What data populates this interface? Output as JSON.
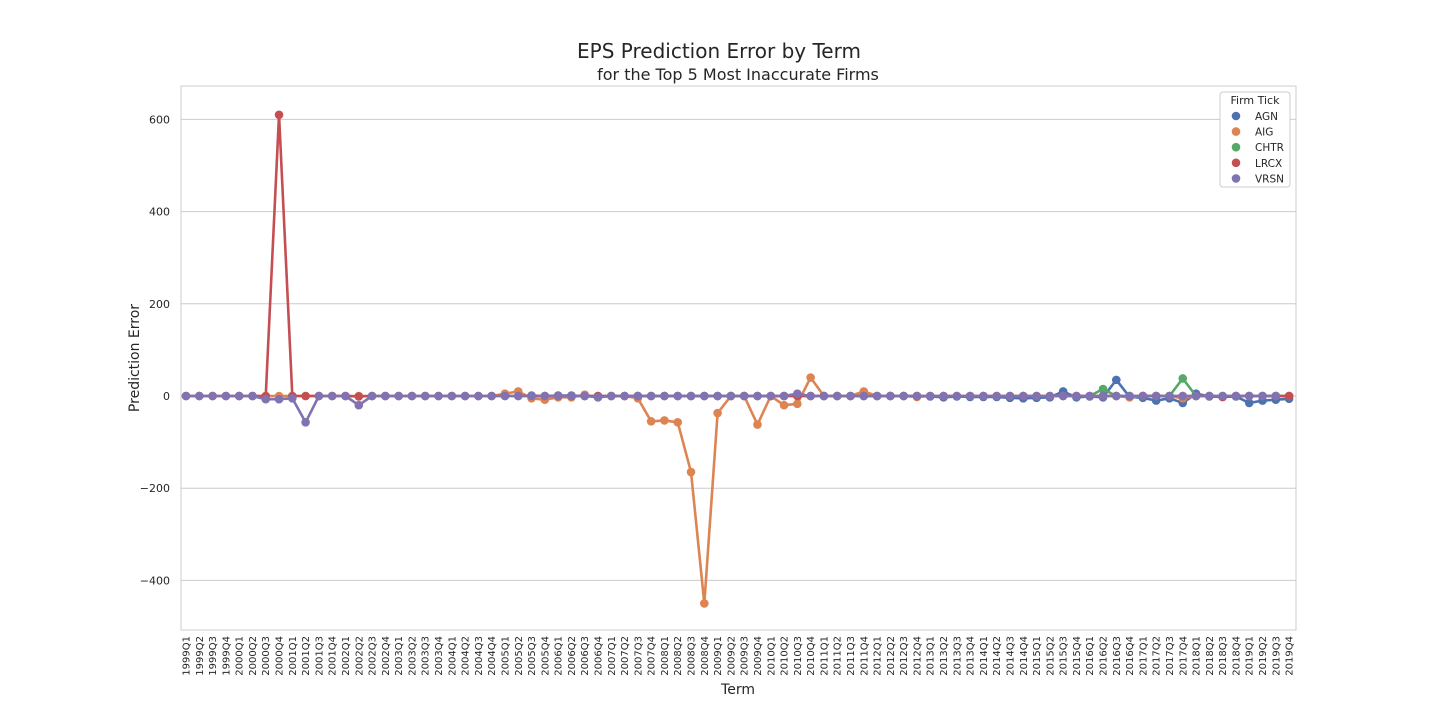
{
  "chart_data": {
    "type": "line",
    "title": "EPS Prediction Error by Term",
    "subtitle": "for the Top 5 Most Inaccurate Firms",
    "xlabel": "Term",
    "ylabel": "Prediction Error",
    "ylim": [
      -500,
      670
    ],
    "yticks": [
      600,
      400,
      200,
      0,
      -200,
      -400
    ],
    "ytick_labels": [
      "600",
      "400",
      "200",
      "0",
      "−200",
      "−400"
    ],
    "grid": "horizontal",
    "legend": {
      "title": "Firm Tick",
      "placement": "top-right"
    },
    "categories": [
      "1999Q1",
      "1999Q2",
      "1999Q3",
      "1999Q4",
      "2000Q1",
      "2000Q2",
      "2000Q3",
      "2000Q4",
      "2001Q1",
      "2001Q2",
      "2001Q3",
      "2001Q4",
      "2002Q1",
      "2002Q2",
      "2002Q3",
      "2002Q4",
      "2003Q1",
      "2003Q2",
      "2003Q3",
      "2003Q4",
      "2004Q1",
      "2004Q2",
      "2004Q3",
      "2004Q4",
      "2005Q1",
      "2005Q2",
      "2005Q3",
      "2005Q4",
      "2006Q1",
      "2006Q2",
      "2006Q3",
      "2006Q4",
      "2007Q1",
      "2007Q2",
      "2007Q3",
      "2007Q4",
      "2008Q1",
      "2008Q2",
      "2008Q3",
      "2008Q4",
      "2009Q1",
      "2009Q2",
      "2009Q3",
      "2009Q4",
      "2010Q1",
      "2010Q2",
      "2010Q3",
      "2010Q4",
      "2011Q1",
      "2011Q2",
      "2011Q3",
      "2011Q4",
      "2012Q1",
      "2012Q2",
      "2012Q3",
      "2012Q4",
      "2013Q1",
      "2013Q2",
      "2013Q3",
      "2013Q4",
      "2014Q1",
      "2014Q2",
      "2014Q3",
      "2014Q4",
      "2015Q1",
      "2015Q2",
      "2015Q3",
      "2015Q4",
      "2016Q1",
      "2016Q2",
      "2016Q3",
      "2016Q4",
      "2017Q1",
      "2017Q2",
      "2017Q3",
      "2017Q4",
      "2018Q1",
      "2018Q2",
      "2018Q3",
      "2018Q4",
      "2019Q1",
      "2019Q2",
      "2019Q3",
      "2019Q4"
    ],
    "series": [
      {
        "name": "AGN",
        "color": "#4c72b0",
        "values": [
          null,
          null,
          null,
          null,
          null,
          null,
          null,
          null,
          null,
          null,
          null,
          null,
          null,
          null,
          null,
          null,
          null,
          null,
          null,
          null,
          null,
          null,
          null,
          null,
          null,
          null,
          1,
          0,
          1,
          1,
          0,
          0,
          0,
          0,
          0,
          0,
          0,
          0,
          0,
          0,
          0,
          0,
          0,
          0,
          0,
          0,
          0,
          0,
          0,
          0,
          0,
          0,
          0,
          0,
          0,
          0,
          -1,
          -3,
          -1,
          -2,
          -2,
          -2,
          -4,
          -5,
          -4,
          -3,
          10,
          -3,
          -1,
          -3,
          35,
          -2,
          -4,
          -10,
          -5,
          -15,
          5,
          -1,
          -2,
          -1,
          -15,
          -10,
          -8,
          -6
        ]
      },
      {
        "name": "AIG",
        "color": "#dd8452",
        "values": [
          0,
          0,
          0,
          0,
          0,
          0,
          0,
          0,
          0,
          0,
          0,
          0,
          0,
          0,
          0,
          0,
          0,
          0,
          0,
          0,
          0,
          0,
          0,
          0,
          5,
          10,
          -5,
          -8,
          -3,
          -3,
          3,
          -3,
          0,
          0,
          -5,
          -55,
          -53,
          -57,
          -165,
          -450,
          -37,
          0,
          0,
          -62,
          0,
          -20,
          -17,
          40,
          0,
          0,
          0,
          10,
          0,
          0,
          0,
          -2,
          0,
          0,
          0,
          0,
          0,
          0,
          0,
          0,
          0,
          0,
          0,
          0,
          0,
          0,
          0,
          -3,
          0,
          0,
          0,
          -5,
          0,
          0,
          0,
          0,
          0,
          0,
          0,
          0
        ]
      },
      {
        "name": "CHTR",
        "color": "#55a868",
        "values": [
          null,
          null,
          null,
          null,
          null,
          null,
          null,
          null,
          null,
          null,
          null,
          null,
          null,
          null,
          null,
          null,
          null,
          null,
          null,
          null,
          null,
          null,
          null,
          null,
          null,
          null,
          null,
          null,
          null,
          null,
          null,
          null,
          null,
          null,
          null,
          null,
          null,
          null,
          null,
          null,
          null,
          null,
          null,
          null,
          null,
          null,
          null,
          null,
          null,
          null,
          null,
          null,
          null,
          null,
          null,
          null,
          null,
          null,
          null,
          null,
          null,
          null,
          null,
          null,
          null,
          null,
          null,
          null,
          0,
          15,
          0,
          0,
          0,
          0,
          0,
          38,
          0,
          0,
          0,
          0,
          0,
          0,
          0,
          0
        ]
      },
      {
        "name": "LRCX",
        "color": "#c44e52",
        "values": [
          0,
          0,
          0,
          0,
          0,
          0,
          0,
          610,
          0,
          0,
          0,
          0,
          0,
          -1,
          0,
          0,
          0,
          0,
          0,
          0,
          0,
          0,
          0,
          0,
          0,
          0,
          0,
          0,
          0,
          0,
          0,
          0,
          0,
          0,
          0,
          0,
          0,
          0,
          0,
          0,
          0,
          0,
          0,
          0,
          0,
          0,
          0,
          0,
          0,
          0,
          0,
          0,
          0,
          0,
          0,
          0,
          0,
          0,
          0,
          0,
          0,
          0,
          0,
          0,
          0,
          0,
          0,
          0,
          0,
          0,
          0,
          0,
          0,
          0,
          0,
          0,
          0,
          0,
          -2,
          0,
          0,
          0,
          0,
          0
        ]
      },
      {
        "name": "VRSN",
        "color": "#8172b2",
        "values": [
          0,
          0,
          0,
          0,
          0,
          0,
          -7,
          -7,
          -5,
          -57,
          0,
          0,
          0,
          -20,
          0,
          0,
          0,
          0,
          0,
          0,
          0,
          0,
          0,
          0,
          0,
          0,
          0,
          0,
          0,
          0,
          0,
          -3,
          0,
          0,
          0,
          0,
          0,
          0,
          0,
          0,
          0,
          0,
          0,
          0,
          0,
          0,
          5,
          0,
          0,
          0,
          0,
          0,
          0,
          0,
          0,
          0,
          0,
          0,
          0,
          0,
          0,
          0,
          0,
          0,
          0,
          0,
          0,
          0,
          0,
          0,
          0,
          0,
          0,
          0,
          0,
          0,
          0,
          0,
          0,
          0,
          0,
          0,
          0,
          null
        ]
      }
    ]
  }
}
